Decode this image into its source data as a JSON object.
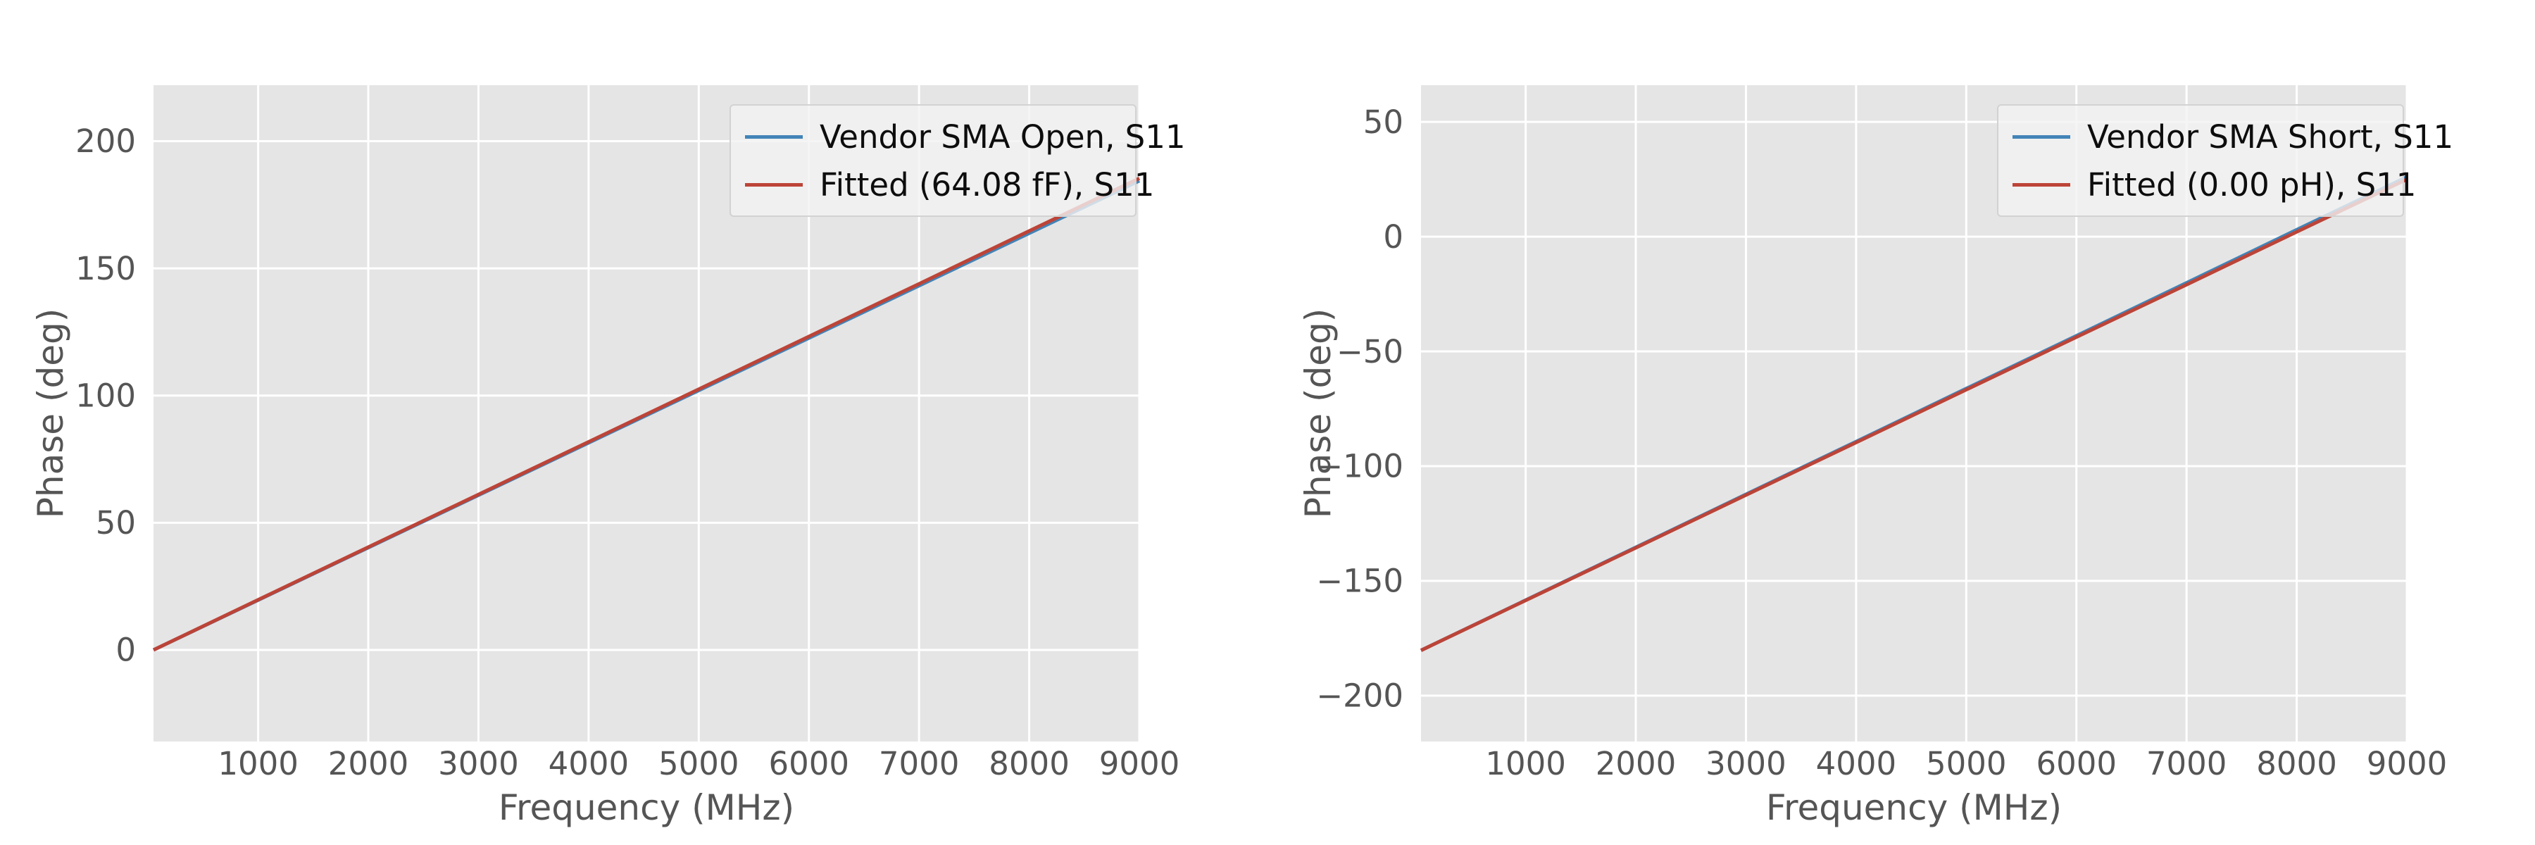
{
  "figure": {
    "background": "#ffffff",
    "plot_background": "#e5e5e5",
    "grid_color": "#ffffff",
    "tick_label_color": "#555555",
    "axis_label_color": "#555555",
    "legend_border_color": "#d2d2d2",
    "series_blue": "#4284b8",
    "series_red": "#bc4438"
  },
  "chart_data": [
    {
      "type": "line",
      "title": "",
      "xlabel": "Frequency (MHz)",
      "ylabel": "Phase (deg)",
      "xlim": [
        50,
        9000
      ],
      "ylim": [
        -36,
        222
      ],
      "xticks": [
        1000,
        2000,
        3000,
        4000,
        5000,
        6000,
        7000,
        8000,
        9000
      ],
      "yticks": [
        0,
        50,
        100,
        150,
        200
      ],
      "grid": true,
      "legend_position": "upper right",
      "x": [
        50,
        1000,
        2000,
        3000,
        4000,
        5000,
        6000,
        7000,
        8000,
        9000
      ],
      "series": [
        {
          "name": "Vendor SMA Open, S11",
          "color": "#4284b8",
          "values": [
            0.0,
            19.6,
            40.2,
            60.8,
            81.4,
            102.0,
            122.6,
            143.2,
            163.8,
            184.4
          ]
        },
        {
          "name": "Fitted (64.08 fF), S11",
          "color": "#bc4438",
          "values": [
            0.0,
            19.7,
            40.4,
            61.1,
            81.8,
            102.5,
            123.2,
            143.9,
            164.7,
            185.4
          ]
        }
      ]
    },
    {
      "type": "line",
      "title": "",
      "xlabel": "Frequency (MHz)",
      "ylabel": "Phase (deg)",
      "xlim": [
        50,
        9000
      ],
      "ylim": [
        -220,
        66
      ],
      "xticks": [
        1000,
        2000,
        3000,
        4000,
        5000,
        6000,
        7000,
        8000,
        9000
      ],
      "yticks": [
        -200,
        -150,
        -100,
        -50,
        0,
        50
      ],
      "grid": true,
      "legend_position": "upper right",
      "x": [
        50,
        1000,
        2000,
        3000,
        4000,
        5000,
        6000,
        7000,
        8000,
        9000
      ],
      "series": [
        {
          "name": "Vendor SMA Short, S11",
          "color": "#4284b8",
          "values": [
            -180.3,
            -158.4,
            -135.4,
            -112.3,
            -89.3,
            -66.2,
            -43.2,
            -20.1,
            3.0,
            26.0
          ]
        },
        {
          "name": "Fitted (0.00 pH), S11",
          "color": "#bc4438",
          "values": [
            -180.3,
            -158.5,
            -135.6,
            -112.6,
            -89.7,
            -66.7,
            -43.8,
            -20.9,
            2.1,
            25.0
          ]
        }
      ]
    }
  ]
}
